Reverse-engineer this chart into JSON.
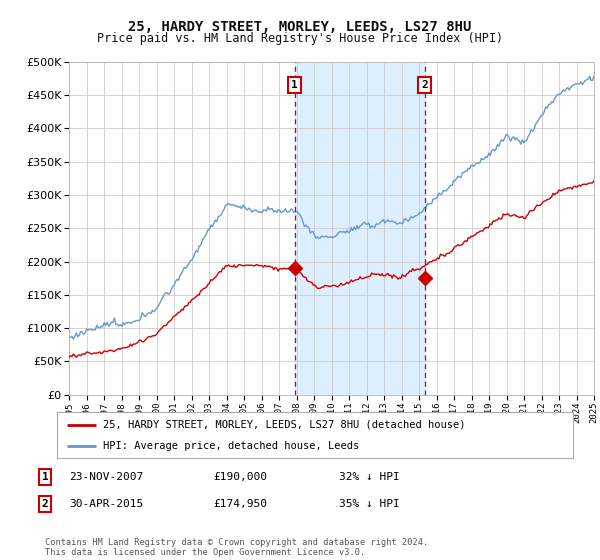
{
  "title": "25, HARDY STREET, MORLEY, LEEDS, LS27 8HU",
  "subtitle": "Price paid vs. HM Land Registry's House Price Index (HPI)",
  "legend_line1": "25, HARDY STREET, MORLEY, LEEDS, LS27 8HU (detached house)",
  "legend_line2": "HPI: Average price, detached house, Leeds",
  "annotation1_label": "1",
  "annotation1_date": "23-NOV-2007",
  "annotation1_price": "£190,000",
  "annotation1_hpi": "32% ↓ HPI",
  "annotation2_label": "2",
  "annotation2_date": "30-APR-2015",
  "annotation2_price": "£174,950",
  "annotation2_hpi": "35% ↓ HPI",
  "footer": "Contains HM Land Registry data © Crown copyright and database right 2024.\nThis data is licensed under the Open Government Licence v3.0.",
  "sale1_year": 2007.9,
  "sale2_year": 2015.33,
  "sale1_price": 190000,
  "sale2_price": 174950,
  "ylim": [
    0,
    500000
  ],
  "yticks": [
    0,
    50000,
    100000,
    150000,
    200000,
    250000,
    300000,
    350000,
    400000,
    450000,
    500000
  ],
  "red_color": "#cc0000",
  "blue_color": "#6699cc",
  "shade_color": "#ddeeff",
  "vline_color": "#cc0000",
  "background_color": "#ffffff",
  "grid_color": "#cccccc"
}
